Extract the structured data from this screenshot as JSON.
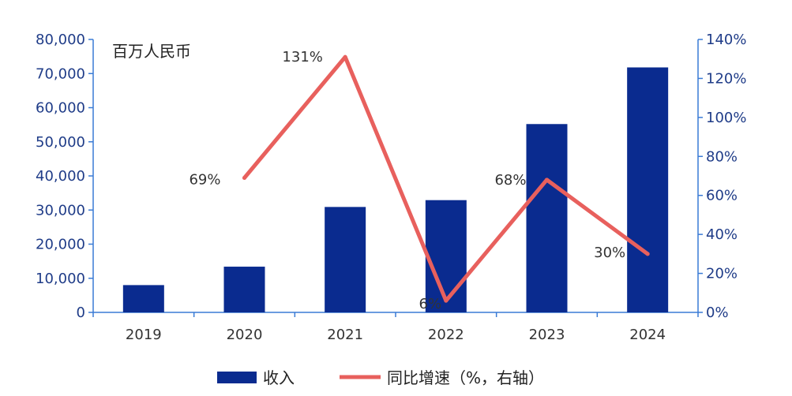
{
  "chart_data": {
    "type": "bar",
    "unit_label": "百万人民币",
    "categories": [
      "2019",
      "2020",
      "2021",
      "2022",
      "2023",
      "2024"
    ],
    "series": [
      {
        "name": "收入",
        "type": "bar",
        "axis": "left",
        "color": "#0a2b8f",
        "values": [
          8000,
          13400,
          30900,
          32900,
          55200,
          71800
        ]
      },
      {
        "name": "同比增速（%，右轴）",
        "type": "line",
        "axis": "right",
        "color": "#e8605d",
        "values": [
          null,
          69,
          131,
          6,
          68,
          30
        ],
        "labels": [
          "",
          "69%",
          "131%",
          "6%",
          "68%",
          "30%"
        ]
      }
    ],
    "y_left": {
      "lim": [
        0,
        80000
      ],
      "ticks": [
        0,
        10000,
        20000,
        30000,
        40000,
        50000,
        60000,
        70000,
        80000
      ],
      "tick_labels": [
        "0",
        "10,000",
        "20,000",
        "30,000",
        "40,000",
        "50,000",
        "60,000",
        "70,000",
        "80,000"
      ]
    },
    "y_right": {
      "lim": [
        0,
        140
      ],
      "ticks": [
        0,
        20,
        40,
        60,
        80,
        100,
        120,
        140
      ],
      "tick_labels": [
        "0%",
        "20%",
        "40%",
        "60%",
        "80%",
        "100%",
        "120%",
        "140%"
      ]
    },
    "grid": false,
    "legend_position": "bottom",
    "axis_color": "#3a7bd5"
  }
}
